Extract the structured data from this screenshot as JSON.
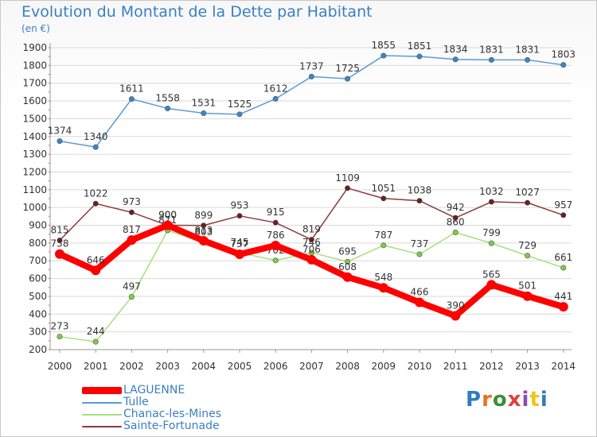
{
  "header": {
    "title": "Evolution du Montant de la Dette par Habitant",
    "unit": "(en €)"
  },
  "logo": {
    "text": "Proxiti",
    "colors": [
      "#2f7bbf",
      "#e8731f",
      "#3a8f3a",
      "#e43c3c",
      "#8b4bb2",
      "#f0c419",
      "#2f7bbf"
    ]
  },
  "chart_data": {
    "type": "line",
    "title": "Evolution du Montant de la Dette par Habitant",
    "ylabel": "(en €)",
    "xlabel": "",
    "x": [
      2000,
      2001,
      2002,
      2003,
      2004,
      2005,
      2006,
      2007,
      2008,
      2009,
      2010,
      2011,
      2012,
      2013,
      2014
    ],
    "ylim": [
      200,
      1900
    ],
    "yticks": [
      200,
      300,
      400,
      500,
      600,
      700,
      800,
      900,
      1000,
      1100,
      1200,
      1300,
      1400,
      1500,
      1600,
      1700,
      1800,
      1900
    ],
    "grid": "horizontal",
    "legend_position": "bottom-left",
    "series": [
      {
        "name": "Tulle",
        "color": "#5b9bd5",
        "point_color": "#3a86c8",
        "width": 1.5,
        "values": [
          1374,
          1340,
          1611,
          1558,
          1531,
          1525,
          1612,
          1737,
          1725,
          1855,
          1851,
          1834,
          1831,
          1831,
          1803
        ]
      },
      {
        "name": "Chanac-les-Mines",
        "color": "#a6e07e",
        "point_color": "#7cce44",
        "width": 1.5,
        "values": [
          273,
          244,
          497,
          871,
          803,
          745,
          702,
          746,
          695,
          787,
          737,
          860,
          799,
          729,
          661
        ]
      },
      {
        "name": "Sainte-Fortunade",
        "color": "#8b3a3a",
        "point_color": "#6b1f1f",
        "width": 1.5,
        "values": [
          815,
          1022,
          973,
          900,
          899,
          953,
          915,
          819,
          1109,
          1051,
          1038,
          942,
          1032,
          1027,
          957
        ]
      },
      {
        "name": "LAGUENNE",
        "color": "#ff0000",
        "point_color": "#ff0000",
        "width": 8,
        "values": [
          738,
          646,
          817,
          900,
          813,
          737,
          786,
          706,
          608,
          548,
          466,
          390,
          565,
          501,
          441
        ]
      }
    ],
    "legend_order": [
      "LAGUENNE",
      "Tulle",
      "Chanac-les-Mines",
      "Sainte-Fortunade"
    ]
  }
}
